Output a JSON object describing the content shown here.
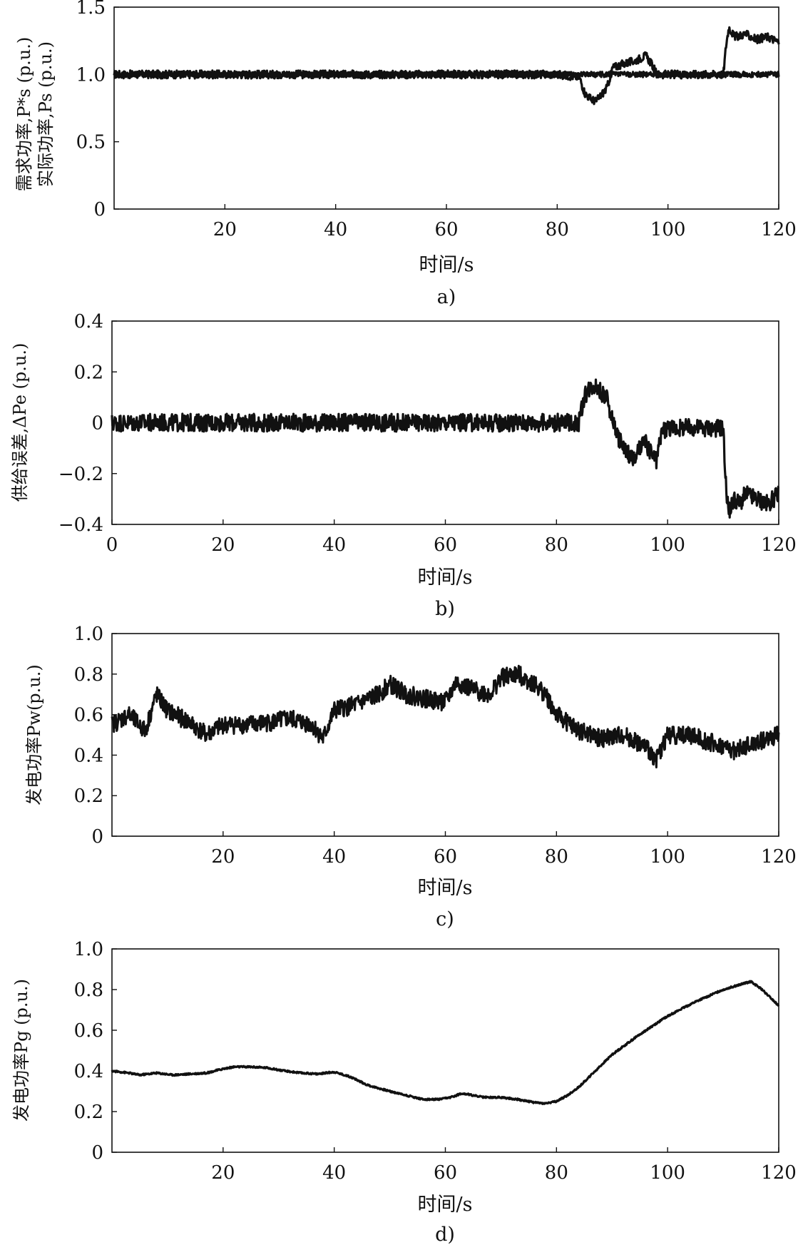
{
  "chart_data": [
    {
      "type": "line",
      "panel_label": "a)",
      "xlabel": "时间/s",
      "ylabel_lines": [
        "需求功率,P*s (p.u.)",
        "实际功率,Ps (p.u.)"
      ],
      "xticks": [
        "20",
        "40",
        "60",
        "80",
        "100",
        "120"
      ],
      "yticks": [
        "0",
        "0.5",
        "1.0",
        "1.5"
      ],
      "xlim": [
        0,
        120
      ],
      "ylim": [
        0,
        1.5
      ],
      "series": [
        {
          "x": [
            0,
            10,
            20,
            30,
            40,
            50,
            60,
            70,
            80,
            84,
            85,
            86,
            87,
            88,
            89,
            90,
            92,
            94,
            95,
            96,
            97,
            98,
            100,
            105,
            110,
            110.5,
            111,
            112,
            114,
            116,
            118,
            120
          ],
          "values": [
            1.0,
            1.0,
            1.0,
            1.0,
            1.0,
            1.0,
            1.0,
            1.0,
            1.0,
            0.98,
            0.86,
            0.82,
            0.8,
            0.85,
            0.9,
            1.05,
            1.08,
            1.1,
            1.12,
            1.14,
            1.08,
            1.0,
            1.0,
            1.0,
            1.0,
            1.22,
            1.35,
            1.28,
            1.3,
            1.26,
            1.28,
            1.24
          ],
          "noise": 0.03
        },
        {
          "x": [
            0,
            20,
            40,
            60,
            80,
            85,
            90,
            100,
            110,
            111,
            120
          ],
          "values": [
            1.0,
            1.0,
            1.0,
            1.0,
            1.0,
            1.0,
            1.0,
            1.0,
            1.0,
            1.0,
            1.0
          ],
          "noise": 0.02
        }
      ]
    },
    {
      "type": "line",
      "panel_label": "b)",
      "xlabel": "时间/s",
      "ylabel_lines": [
        "供给误差,ΔPe (p.u.)"
      ],
      "xticks": [
        "0",
        "20",
        "40",
        "60",
        "80",
        "100",
        "120"
      ],
      "yticks": [
        "-0.4",
        "-0.2",
        "0",
        "0.2",
        "0.4"
      ],
      "xlim": [
        0,
        120
      ],
      "ylim": [
        -0.4,
        0.4
      ],
      "series": [
        {
          "x": [
            0,
            10,
            20,
            30,
            40,
            50,
            60,
            70,
            80,
            84,
            85,
            86,
            87,
            88,
            89,
            90,
            91,
            92,
            93,
            94,
            95,
            96,
            97,
            98,
            99,
            100,
            105,
            109,
            110,
            110.5,
            111,
            112,
            113,
            114,
            116,
            118,
            120
          ],
          "values": [
            0,
            0,
            0,
            0,
            0,
            0,
            0,
            0,
            0,
            0,
            0.1,
            0.14,
            0.15,
            0.12,
            0.1,
            0.02,
            -0.05,
            -0.1,
            -0.12,
            -0.15,
            -0.1,
            -0.08,
            -0.12,
            -0.15,
            -0.03,
            -0.02,
            -0.02,
            -0.02,
            -0.02,
            -0.25,
            -0.35,
            -0.3,
            -0.32,
            -0.28,
            -0.3,
            -0.32,
            -0.28
          ],
          "noise": 0.035
        }
      ]
    },
    {
      "type": "line",
      "panel_label": "c)",
      "xlabel": "时间/s",
      "ylabel_lines": [
        "发电功率Pw(p.u.)"
      ],
      "xticks": [
        "20",
        "40",
        "60",
        "80",
        "100",
        "120"
      ],
      "yticks": [
        "0",
        "0.2",
        "0.4",
        "0.6",
        "0.8",
        "1.0"
      ],
      "xlim": [
        0,
        120
      ],
      "ylim": [
        0,
        1.0
      ],
      "series": [
        {
          "x": [
            0,
            3,
            6,
            8,
            10,
            14,
            17,
            20,
            24,
            28,
            32,
            36,
            38,
            40,
            44,
            48,
            50,
            53,
            56,
            60,
            62,
            65,
            68,
            70,
            73,
            76,
            78,
            80,
            84,
            88,
            92,
            96,
            98,
            100,
            104,
            108,
            112,
            116,
            120
          ],
          "values": [
            0.55,
            0.6,
            0.52,
            0.7,
            0.62,
            0.56,
            0.5,
            0.55,
            0.55,
            0.56,
            0.58,
            0.55,
            0.48,
            0.62,
            0.65,
            0.7,
            0.75,
            0.7,
            0.68,
            0.66,
            0.76,
            0.72,
            0.7,
            0.78,
            0.8,
            0.75,
            0.7,
            0.6,
            0.52,
            0.48,
            0.5,
            0.44,
            0.38,
            0.5,
            0.5,
            0.46,
            0.42,
            0.46,
            0.5
          ],
          "noise": 0.045
        }
      ]
    },
    {
      "type": "line",
      "panel_label": "d)",
      "xlabel": "时间/s",
      "ylabel_lines": [
        "发电功率Pg (p.u.)"
      ],
      "xticks": [
        "20",
        "40",
        "60",
        "80",
        "100",
        "120"
      ],
      "yticks": [
        "0",
        "0.2",
        "0.4",
        "0.6",
        "0.8",
        "1.0"
      ],
      "xlim": [
        0,
        120
      ],
      "ylim": [
        0,
        1.0
      ],
      "series": [
        {
          "x": [
            0,
            3,
            5,
            8,
            11,
            14,
            17,
            20,
            22,
            25,
            28,
            31,
            34,
            37,
            40,
            43,
            46,
            50,
            53,
            56,
            59,
            61,
            63,
            65,
            67,
            70,
            73,
            76,
            78,
            80,
            82,
            84,
            87,
            90,
            95,
            100,
            105,
            110,
            115,
            117,
            120
          ],
          "values": [
            0.4,
            0.39,
            0.38,
            0.39,
            0.38,
            0.385,
            0.39,
            0.41,
            0.42,
            0.42,
            0.415,
            0.4,
            0.39,
            0.385,
            0.395,
            0.37,
            0.33,
            0.3,
            0.28,
            0.26,
            0.26,
            0.27,
            0.29,
            0.28,
            0.27,
            0.27,
            0.26,
            0.245,
            0.24,
            0.25,
            0.28,
            0.32,
            0.4,
            0.48,
            0.58,
            0.67,
            0.74,
            0.8,
            0.84,
            0.8,
            0.72
          ],
          "noise": 0.004
        }
      ]
    }
  ]
}
